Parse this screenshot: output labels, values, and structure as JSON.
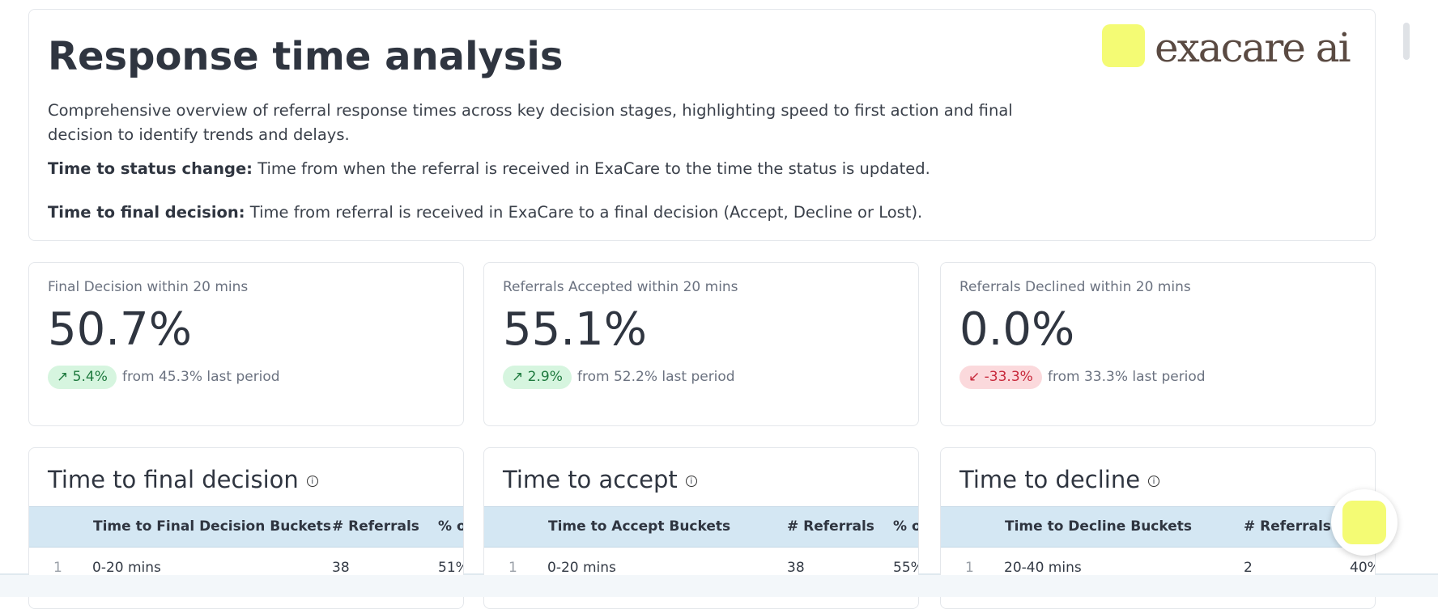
{
  "header": {
    "title": "Response time analysis",
    "logo": "exacare ai",
    "description": "Comprehensive overview of referral response times across key decision stages, highlighting speed to first action and final decision to identify trends and delays.",
    "definitions": [
      {
        "term": "Time to status change:",
        "text": "Time from when the referral is received in ExaCare to the time the status is updated."
      },
      {
        "term": "Time to final decision:",
        "text": "Time from referral is received in ExaCare to a final decision (Accept, Decline or Lost)."
      }
    ]
  },
  "kpis": [
    {
      "label": "Final Decision within 20 mins",
      "value": "50.7%",
      "delta": "5.4%",
      "direction": "up",
      "comparison": "from 45.3% last period"
    },
    {
      "label": "Referrals Accepted within 20 mins",
      "value": "55.1%",
      "delta": "2.9%",
      "direction": "up",
      "comparison": "from 52.2% last period"
    },
    {
      "label": "Referrals Declined within 20 mins",
      "value": "0.0%",
      "delta": "-33.3%",
      "direction": "down",
      "comparison": "from 33.3% last period"
    }
  ],
  "tables": [
    {
      "title": "Time to final decision",
      "columns": [
        "Time to Final Decision Buckets",
        "# Referrals",
        "% of Total"
      ],
      "rows": [
        [
          "1",
          "0-20 mins",
          "38",
          "51%"
        ]
      ]
    },
    {
      "title": "Time to accept",
      "columns": [
        "Time to Accept Buckets",
        "# Referrals",
        "% of Total"
      ],
      "rows": [
        [
          "1",
          "0-20 mins",
          "38",
          "55%"
        ]
      ]
    },
    {
      "title": "Time to decline",
      "columns": [
        "Time to Decline Buckets",
        "# Referrals",
        "% of Total"
      ],
      "rows": [
        [
          "1",
          "20-40 mins",
          "2",
          "40%"
        ]
      ]
    }
  ]
}
